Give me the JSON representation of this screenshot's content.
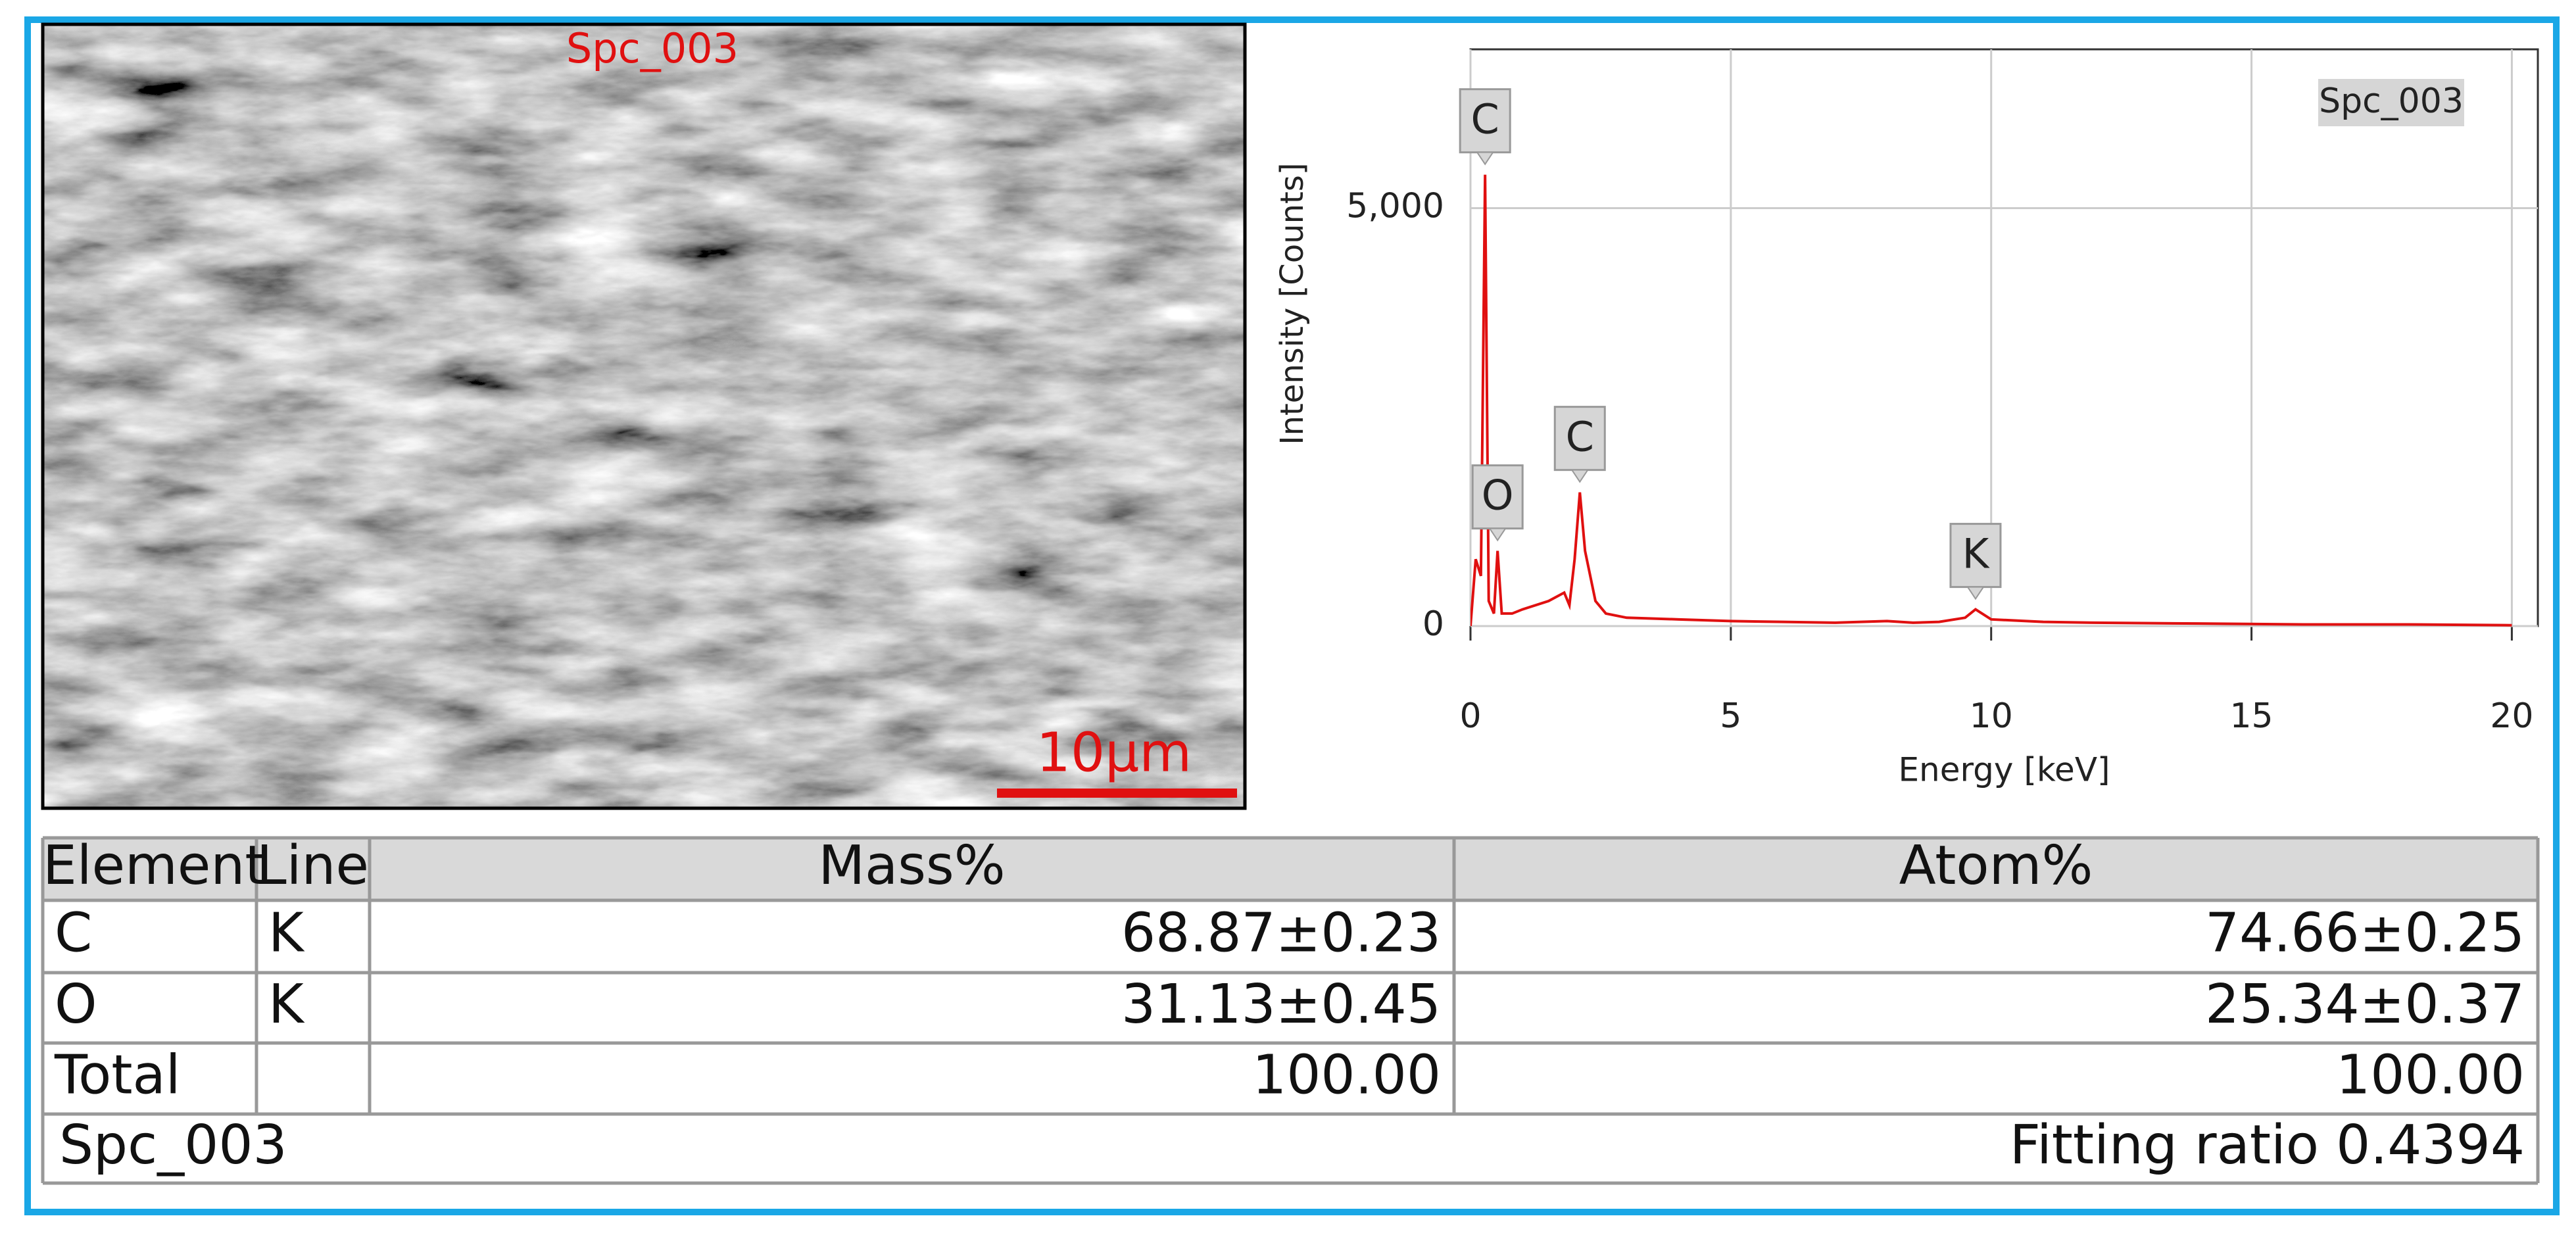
{
  "image": {
    "label": "Spc_003",
    "scale_bar": "10μm"
  },
  "chart_data": {
    "type": "line",
    "xlabel": "Energy [keV]",
    "ylabel": "Intensity [Counts]",
    "xlim": [
      0,
      20.5
    ],
    "ylim": [
      0,
      6900
    ],
    "xticks": [
      0,
      5,
      10,
      15,
      20
    ],
    "yticks": [
      0,
      {
        "value": 5000,
        "label": "5,000"
      }
    ],
    "grid": true,
    "legend": "top-right",
    "x": [
      0,
      0.1,
      0.2,
      0.28,
      0.35,
      0.45,
      0.52,
      0.6,
      0.8,
      1.0,
      1.5,
      1.8,
      1.9,
      2.0,
      2.1,
      2.2,
      2.4,
      2.6,
      3,
      4,
      5,
      6,
      7,
      8,
      8.5,
      9,
      9.5,
      9.7,
      10,
      11,
      12,
      14,
      16,
      18,
      20
    ],
    "series": [
      {
        "name": "Spc_003",
        "color": "#e01010",
        "values": [
          0,
          800,
          600,
          5400,
          300,
          150,
          900,
          150,
          150,
          200,
          300,
          400,
          250,
          800,
          1600,
          900,
          300,
          150,
          100,
          80,
          60,
          50,
          40,
          60,
          40,
          50,
          100,
          200,
          80,
          50,
          40,
          30,
          20,
          20,
          10
        ]
      }
    ],
    "annotations": [
      {
        "label": "C",
        "x": 0.28,
        "y": 5400
      },
      {
        "label": "O",
        "x": 0.52,
        "y": 900
      },
      {
        "label": "C",
        "x": 2.1,
        "y": 1600
      },
      {
        "label": "K",
        "x": 9.7,
        "y": 200
      }
    ]
  },
  "table": {
    "header": [
      "Element",
      "Line",
      "Mass%",
      "Atom%"
    ],
    "rows": [
      [
        "C",
        "K",
        "68.87±0.23",
        "74.66±0.25"
      ],
      [
        "O",
        "K",
        "31.13±0.45",
        "25.34±0.37"
      ],
      [
        "Total",
        "",
        "100.00",
        "100.00"
      ]
    ],
    "footer": {
      "spectrum": "Spc_003",
      "fitting": "Fitting ratio 0.4394"
    }
  }
}
